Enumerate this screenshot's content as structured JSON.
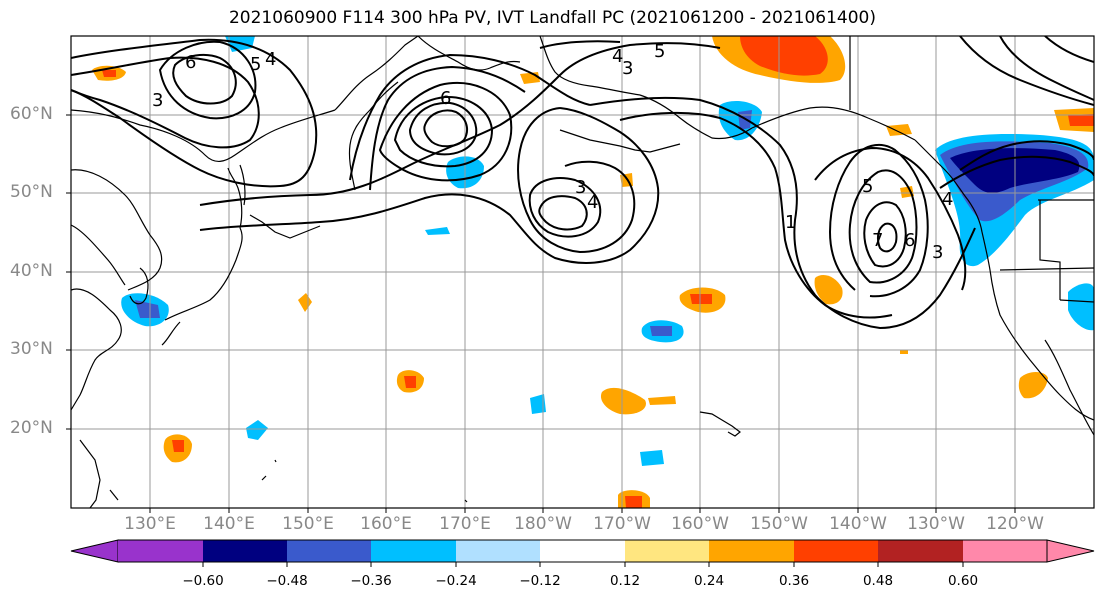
{
  "title": "2021060900 F114 300 hPa PV, IVT Landfall PC (2021061200 - 2021061400)",
  "map": {
    "lat_labels": [
      "60°N",
      "50°N",
      "40°N",
      "30°N",
      "20°N"
    ],
    "lon_labels": [
      "130°E",
      "140°E",
      "150°E",
      "160°E",
      "170°E",
      "180°W",
      "170°W",
      "160°W",
      "150°W",
      "140°W",
      "130°W",
      "120°W"
    ],
    "contour_labels": [
      "6",
      "5",
      "4",
      "3",
      "6",
      "4",
      "3",
      "5",
      "3",
      "4",
      "1",
      "5",
      "7",
      "6",
      "3",
      "4"
    ],
    "land_color": "#000000",
    "grid_color": "#999999"
  },
  "colorbar": {
    "ticks": [
      "−0.60",
      "−0.48",
      "−0.36",
      "−0.24",
      "−0.12",
      "0.12",
      "0.24",
      "0.36",
      "0.48",
      "0.60"
    ],
    "colors": [
      "#9933cc",
      "#000080",
      "#3a5acc",
      "#00bfff",
      "#b0e0ff",
      "#ffffff",
      "#ffe680",
      "#ffa500",
      "#ff4000",
      "#b22222",
      "#ff88aa"
    ]
  }
}
